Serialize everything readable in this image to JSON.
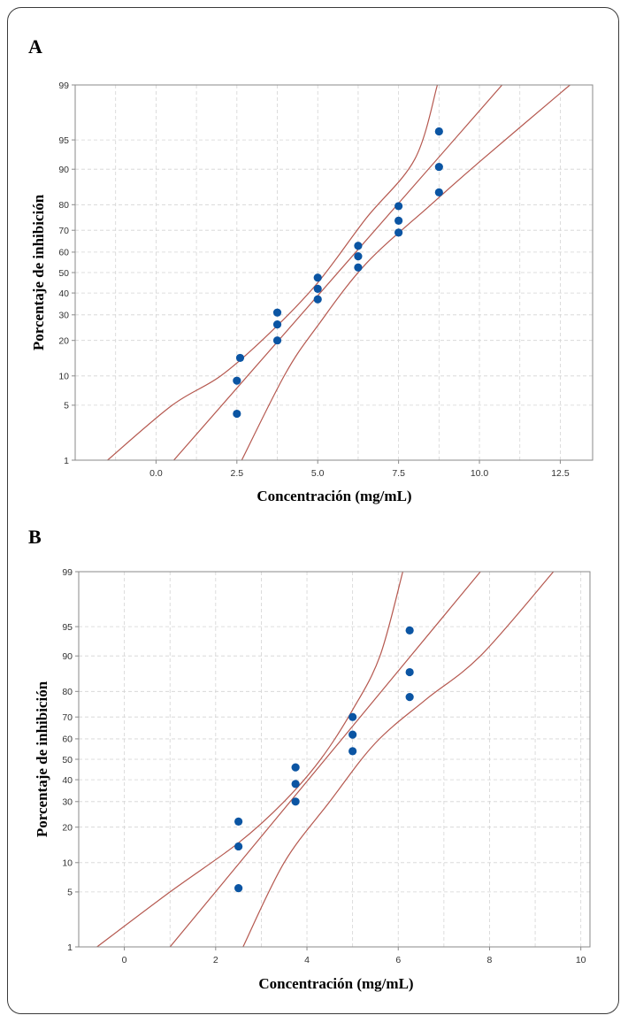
{
  "chart_data": [
    {
      "type": "scatter",
      "panel_label": "A",
      "xlabel": "Concentración (mg/mL)",
      "ylabel": "Porcentaje de inhibición",
      "y_scale": "probability",
      "xlim": [
        -2.5,
        13.5
      ],
      "ylim": [
        1,
        99
      ],
      "x_ticks": [
        0.0,
        2.5,
        5.0,
        7.5,
        10.0,
        12.5
      ],
      "x_tick_labels": [
        "0.0",
        "2.5",
        "5.0",
        "7.5",
        "10.0",
        "12.5"
      ],
      "y_ticks": [
        1,
        5,
        10,
        20,
        30,
        40,
        50,
        60,
        70,
        80,
        90,
        95,
        99
      ],
      "grid": true,
      "series": [
        {
          "name": "observations",
          "points": [
            {
              "x": 2.5,
              "y": 4
            },
            {
              "x": 2.5,
              "y": 9
            },
            {
              "x": 2.6,
              "y": 14.5
            },
            {
              "x": 3.75,
              "y": 20
            },
            {
              "x": 3.75,
              "y": 26
            },
            {
              "x": 3.75,
              "y": 31
            },
            {
              "x": 5.0,
              "y": 37
            },
            {
              "x": 5.0,
              "y": 42
            },
            {
              "x": 5.0,
              "y": 47.5
            },
            {
              "x": 6.25,
              "y": 52.5
            },
            {
              "x": 6.25,
              "y": 58
            },
            {
              "x": 6.25,
              "y": 63
            },
            {
              "x": 7.5,
              "y": 69
            },
            {
              "x": 7.5,
              "y": 74
            },
            {
              "x": 7.5,
              "y": 79.5
            },
            {
              "x": 8.75,
              "y": 84
            },
            {
              "x": 8.75,
              "y": 90.5
            },
            {
              "x": 8.75,
              "y": 96
            }
          ]
        }
      ],
      "fit_lines": {
        "fit": [
          [
            0.55,
            1
          ],
          [
            10.7,
            99
          ]
        ],
        "lower_ci": [
          [
            2.65,
            1
          ],
          [
            4.0,
            10.5
          ],
          [
            5.0,
            25.5
          ],
          [
            6.5,
            54.5
          ],
          [
            8.5,
            80
          ],
          [
            10.0,
            91.5
          ],
          [
            12.8,
            99
          ]
        ],
        "upper_ci": [
          [
            -1.5,
            1
          ],
          [
            0.5,
            5
          ],
          [
            2.0,
            10
          ],
          [
            3.5,
            22.5
          ],
          [
            5.0,
            45
          ],
          [
            6.5,
            75
          ],
          [
            8.0,
            92
          ],
          [
            8.7,
            99
          ]
        ]
      }
    },
    {
      "type": "scatter",
      "panel_label": "B",
      "xlabel": "Concentración (mg/mL)",
      "ylabel": "Porcentaje de inhibición",
      "y_scale": "probability",
      "xlim": [
        -1,
        10.2
      ],
      "ylim": [
        1,
        99
      ],
      "x_ticks": [
        0,
        2,
        4,
        6,
        8,
        10
      ],
      "x_tick_labels": [
        "0",
        "2",
        "4",
        "6",
        "8",
        "10"
      ],
      "y_ticks": [
        1,
        5,
        10,
        20,
        30,
        40,
        50,
        60,
        70,
        80,
        90,
        95,
        99
      ],
      "grid": true,
      "series": [
        {
          "name": "observations",
          "points": [
            {
              "x": 2.5,
              "y": 5.5
            },
            {
              "x": 2.5,
              "y": 14
            },
            {
              "x": 2.5,
              "y": 22
            },
            {
              "x": 3.75,
              "y": 30
            },
            {
              "x": 3.75,
              "y": 38
            },
            {
              "x": 3.75,
              "y": 46
            },
            {
              "x": 5.0,
              "y": 54
            },
            {
              "x": 5.0,
              "y": 62
            },
            {
              "x": 5.0,
              "y": 70
            },
            {
              "x": 6.25,
              "y": 78
            },
            {
              "x": 6.25,
              "y": 86
            },
            {
              "x": 6.25,
              "y": 94.5
            }
          ]
        }
      ],
      "fit_lines": {
        "fit": [
          [
            1.0,
            1
          ],
          [
            7.8,
            99
          ]
        ],
        "lower_ci": [
          [
            2.6,
            1
          ],
          [
            3.5,
            10
          ],
          [
            4.5,
            30
          ],
          [
            5.5,
            58
          ],
          [
            6.6,
            77
          ],
          [
            7.8,
            90
          ],
          [
            9.4,
            99
          ]
        ],
        "upper_ci": [
          [
            -0.6,
            1
          ],
          [
            1.0,
            5
          ],
          [
            2.5,
            15
          ],
          [
            3.5,
            30
          ],
          [
            4.3,
            50
          ],
          [
            5.0,
            73
          ],
          [
            5.6,
            90
          ],
          [
            6.1,
            99
          ]
        ]
      }
    }
  ]
}
